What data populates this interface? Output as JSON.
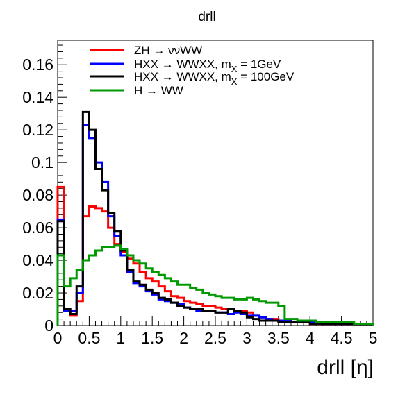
{
  "chart_data": {
    "type": "line",
    "title": "drll",
    "xlabel": "drll [η]",
    "ylabel": "",
    "xlim": [
      0,
      5
    ],
    "ylim": [
      0,
      0.175
    ],
    "x_ticks": [
      "0",
      "0.5",
      "1",
      "1.5",
      "2",
      "2.5",
      "3",
      "3.5",
      "4",
      "4.5",
      "5"
    ],
    "y_ticks": [
      "0",
      "0.02",
      "0.04",
      "0.06",
      "0.08",
      "0.1",
      "0.12",
      "0.14",
      "0.16"
    ],
    "legend_position": "top-left",
    "bin_width": 0.1,
    "series": [
      {
        "name": "ZH → ννWW",
        "legend_main": "ZH → ννWW",
        "legend_sub": "",
        "legend_tail": "",
        "color": "#ff0000",
        "values": [
          0.085,
          0.01,
          0.006,
          0.015,
          0.067,
          0.073,
          0.072,
          0.07,
          0.06,
          0.05,
          0.045,
          0.041,
          0.038,
          0.033,
          0.029,
          0.027,
          0.024,
          0.021,
          0.018,
          0.017,
          0.015,
          0.014,
          0.013,
          0.012,
          0.012,
          0.011,
          0.01,
          0.01,
          0.009,
          0.009,
          0.008,
          0.006,
          0.005,
          0.004,
          0.004,
          0.003,
          0.002,
          0.002,
          0.002,
          0.002,
          0.001,
          0.001,
          0.001,
          0.001,
          0.001,
          0.001,
          0.001,
          0.001,
          0.001,
          0.001
        ]
      },
      {
        "name": "HXX → WWXX, mX = 1GeV",
        "legend_main": "HXX → WWXX, m",
        "legend_sub": "X",
        "legend_tail": " = 1GeV",
        "color": "#0000ff",
        "values": [
          0.065,
          0.009,
          0.009,
          0.02,
          0.123,
          0.115,
          0.1,
          0.088,
          0.067,
          0.055,
          0.043,
          0.033,
          0.026,
          0.024,
          0.021,
          0.019,
          0.016,
          0.015,
          0.014,
          0.013,
          0.011,
          0.01,
          0.009,
          0.009,
          0.009,
          0.008,
          0.008,
          0.007,
          0.008,
          0.007,
          0.006,
          0.006,
          0.005,
          0.004,
          0.003,
          0.003,
          0.003,
          0.002,
          0.002,
          0.002,
          0.002,
          0.002,
          0.001,
          0.001,
          0.001,
          0.001,
          0.001,
          0.001,
          0.001,
          0.001
        ]
      },
      {
        "name": "HXX → WWXX, mX = 100GeV",
        "legend_main": "HXX → WWXX, m",
        "legend_sub": "X",
        "legend_tail": " = 100GeV",
        "color": "#000000",
        "values": [
          0.064,
          0.01,
          0.007,
          0.024,
          0.131,
          0.12,
          0.096,
          0.083,
          0.069,
          0.058,
          0.046,
          0.034,
          0.027,
          0.025,
          0.022,
          0.02,
          0.017,
          0.016,
          0.014,
          0.012,
          0.011,
          0.01,
          0.01,
          0.009,
          0.009,
          0.008,
          0.008,
          0.01,
          0.009,
          0.008,
          0.005,
          0.004,
          0.003,
          0.003,
          0.003,
          0.002,
          0.002,
          0.002,
          0.002,
          0.002,
          0.001,
          0.001,
          0.001,
          0.001,
          0.001,
          0.001,
          0.001,
          0.001,
          0.001,
          0.001
        ]
      },
      {
        "name": "H → WW",
        "legend_main": "H → WW",
        "legend_sub": "",
        "legend_tail": "",
        "color": "#009900",
        "values": [
          0.043,
          0.024,
          0.029,
          0.034,
          0.04,
          0.043,
          0.046,
          0.048,
          0.048,
          0.049,
          0.047,
          0.043,
          0.04,
          0.038,
          0.035,
          0.033,
          0.031,
          0.029,
          0.027,
          0.025,
          0.025,
          0.023,
          0.022,
          0.02,
          0.019,
          0.018,
          0.017,
          0.017,
          0.016,
          0.016,
          0.017,
          0.016,
          0.015,
          0.014,
          0.014,
          0.012,
          0.004,
          0.004,
          0.003,
          0.003,
          0.003,
          0.002,
          0.002,
          0.002,
          0.002,
          0.002,
          0.002,
          0.001,
          0.001,
          0.001
        ]
      }
    ]
  }
}
